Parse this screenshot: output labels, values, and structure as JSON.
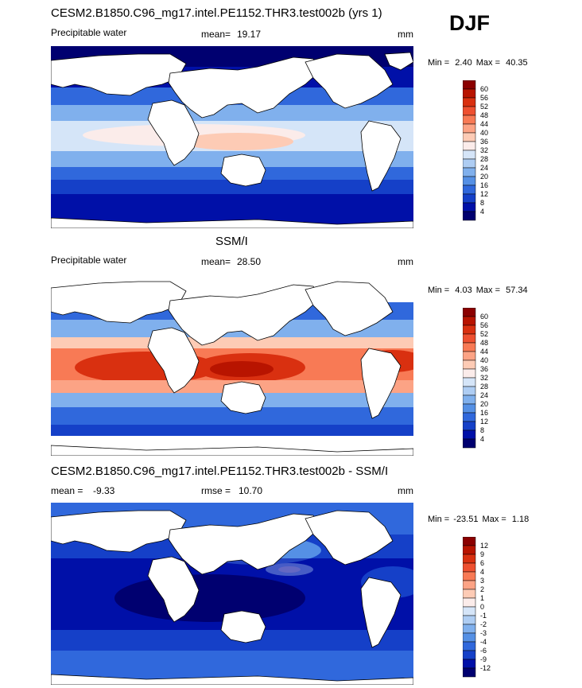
{
  "season": "DJF",
  "land_color": "#ffffff",
  "panels": [
    {
      "title": "CESM2.B1850.C96_mg17.intel.PE1152.THR3.test002b (yrs 1)",
      "variable": "Precipitable water",
      "stat_label": "mean=",
      "stat_value": "19.17",
      "stat2_label": "",
      "stat2_value": "",
      "units": "mm",
      "min_label": "Min =",
      "min": "2.40",
      "max_label": "Max =",
      "max": "40.35"
    },
    {
      "title": "SSM/I",
      "variable": "Precipitable water",
      "stat_label": "mean=",
      "stat_value": "28.50",
      "stat2_label": "",
      "stat2_value": "",
      "units": "mm",
      "min_label": "Min =",
      "min": "4.03",
      "max_label": "Max =",
      "max": "57.34"
    },
    {
      "title": "CESM2.B1850.C96_mg17.intel.PE1152.THR3.test002b - SSM/I",
      "variable": "",
      "stat_label": "mean =",
      "stat_value": "-9.33",
      "stat2_label": "rmse =",
      "stat2_value": "10.70",
      "units": "mm",
      "min_label": "Min =",
      "min": "-23.51",
      "max_label": "Max =",
      "max": "1.18"
    }
  ],
  "colorbars": [
    {
      "labels": [
        "60",
        "56",
        "52",
        "48",
        "44",
        "40",
        "36",
        "32",
        "28",
        "24",
        "20",
        "16",
        "12",
        "8",
        "4"
      ],
      "colors": [
        "#8b0000",
        "#b81400",
        "#d93010",
        "#ee5030",
        "#f87a55",
        "#fca385",
        "#fdcbb5",
        "#fbecea",
        "#d5e5f8",
        "#aecdf3",
        "#80b0ed",
        "#5590e5",
        "#3068dc",
        "#1540c8",
        "#0010a8",
        "#000070"
      ]
    },
    {
      "labels": [
        "60",
        "56",
        "52",
        "48",
        "44",
        "40",
        "36",
        "32",
        "28",
        "24",
        "20",
        "16",
        "12",
        "8",
        "4"
      ],
      "colors": [
        "#8b0000",
        "#b81400",
        "#d93010",
        "#ee5030",
        "#f87a55",
        "#fca385",
        "#fdcbb5",
        "#fbecea",
        "#d5e5f8",
        "#aecdf3",
        "#80b0ed",
        "#5590e5",
        "#3068dc",
        "#1540c8",
        "#0010a8",
        "#000070"
      ]
    },
    {
      "labels": [
        "12",
        "9",
        "6",
        "4",
        "3",
        "2",
        "1",
        "0",
        "-1",
        "-2",
        "-3",
        "-4",
        "-6",
        "-9",
        "-12"
      ],
      "colors": [
        "#8b0000",
        "#b81400",
        "#d93010",
        "#ee5030",
        "#f87a55",
        "#fca385",
        "#fdcbb5",
        "#fbecea",
        "#d5e5f8",
        "#aecdf3",
        "#80b0ed",
        "#5590e5",
        "#3068dc",
        "#1540c8",
        "#0010a8",
        "#000070"
      ]
    }
  ]
}
